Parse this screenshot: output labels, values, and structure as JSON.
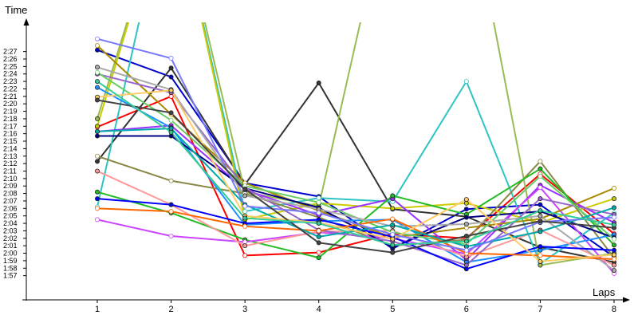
{
  "chart_data": {
    "type": "line",
    "title": "",
    "xlabel": "Laps",
    "ylabel": "Time",
    "x": [
      1,
      2,
      3,
      4,
      5,
      6,
      7,
      8
    ],
    "x_tick_labels": [
      "1",
      "2",
      "3",
      "4",
      "5",
      "6",
      "7",
      "8"
    ],
    "y_tick_labels": [
      "1:57",
      "1:58",
      "1:59",
      "2:00",
      "2:01",
      "2:02",
      "2:03",
      "2:04",
      "2:05",
      "2:06",
      "2:07",
      "2:08",
      "2:09",
      "2:10",
      "2:11",
      "2:12",
      "2:13",
      "2:14",
      "2:15",
      "2:16",
      "2:17",
      "2:18",
      "2:19",
      "2:20",
      "2:21",
      "2:22",
      "2:23",
      "2:24",
      "2:25",
      "2:26",
      "2:27"
    ],
    "ylim_seconds": [
      116,
      163
    ],
    "grid": false,
    "legend": "none",
    "series": [
      {
        "color": "#ff0000",
        "values": [
          136.9,
          141.0,
          119.7,
          120.1,
          122.6,
          122.0,
          130.6,
          122.6
        ]
      },
      {
        "color": "#0000cc",
        "values": [
          147.2,
          143.6,
          129.4,
          127.6,
          120.6,
          125.9,
          126.5,
          119.5
        ]
      },
      {
        "color": "#333333",
        "values": [
          132.3,
          144.8,
          129.2,
          142.8,
          125.9,
          124.9,
          120.8,
          118.8
        ]
      },
      {
        "color": "#2ec4c4",
        "values": [
          126.2,
          170.0,
          125.6,
          127.4,
          126.9,
          143.0,
          118.6,
          125.4
        ]
      },
      {
        "color": "#cccc00",
        "values": [
          137.0,
          170.0,
          124.5,
          126.7,
          126.0,
          126.7,
          124.1,
          127.3
        ]
      },
      {
        "color": "#99bb55",
        "values": [
          138.0,
          170.0,
          128.2,
          126.3,
          170.0,
          170.0,
          118.4,
          120.0
        ]
      },
      {
        "color": "#888844",
        "values": [
          133.0,
          129.7,
          128.0,
          124.8,
          121.0,
          121.8,
          132.3,
          119.4
        ]
      },
      {
        "color": "#9b30ff",
        "values": [
          136.3,
          137.1,
          128.5,
          125.1,
          127.3,
          119.1,
          129.1,
          124.1
        ]
      },
      {
        "color": "#22bb22",
        "values": [
          128.2,
          125.4,
          121.8,
          119.4,
          127.7,
          125.2,
          131.3,
          121.1
        ]
      },
      {
        "color": "#cc44ff",
        "values": [
          124.5,
          122.3,
          121.5,
          122.8,
          122.0,
          119.9,
          128.8,
          117.3
        ]
      },
      {
        "color": "#1e90ff",
        "values": [
          142.2,
          136.8,
          123.8,
          124.3,
          124.5,
          118.8,
          120.4,
          122.5
        ]
      },
      {
        "color": "#ff9999",
        "values": [
          131.0,
          126.5,
          121.0,
          122.9,
          123.0,
          119.5,
          123.1,
          118.4
        ]
      },
      {
        "color": "#aa8800",
        "values": [
          147.8,
          138.6,
          129.4,
          125.7,
          122.1,
          123.4,
          124.6,
          128.7
        ]
      },
      {
        "color": "#000080",
        "values": [
          135.7,
          135.7,
          128.7,
          126.1,
          120.8,
          124.8,
          125.6,
          122.1
        ]
      },
      {
        "color": "#9966cc",
        "values": [
          144.0,
          141.5,
          128.8,
          123.1,
          121.6,
          118.4,
          127.3,
          125.2
        ]
      },
      {
        "color": "#66cc66",
        "values": [
          144.2,
          137.8,
          129.0,
          126.8,
          122.8,
          121.2,
          130.3,
          121.9
        ]
      },
      {
        "color": "#aaaaaa",
        "values": [
          144.9,
          141.9,
          127.7,
          125.9,
          123.6,
          123.9,
          125.0,
          117.7
        ]
      },
      {
        "color": "#0000ff",
        "values": [
          127.3,
          126.5,
          124.0,
          124.5,
          122.2,
          117.9,
          120.9,
          120.4
        ]
      },
      {
        "color": "#ff6600",
        "values": [
          126.0,
          125.6,
          123.6,
          123.0,
          124.6,
          120.0,
          119.7,
          119.2
        ]
      },
      {
        "color": "#00aaaa",
        "values": [
          136.3,
          136.7,
          126.5,
          122.2,
          123.8,
          120.9,
          122.9,
          126.1
        ]
      },
      {
        "color": "#ffcc66",
        "values": [
          140.9,
          141.8,
          125.0,
          124.1,
          121.9,
          127.2,
          118.9,
          119.8
        ]
      },
      {
        "color": "#7777ff",
        "values": [
          148.7,
          146.1,
          126.3,
          125.4,
          122.5,
          120.4,
          124.2,
          124.8
        ]
      },
      {
        "color": "#444444",
        "values": [
          140.5,
          138.8,
          128.6,
          121.4,
          120.1,
          122.3,
          124.3,
          123.4
        ]
      },
      {
        "color": "#33cc99",
        "values": [
          143.0,
          136.2,
          124.7,
          124.0,
          121.1,
          121.6,
          125.7,
          123.8
        ]
      }
    ]
  }
}
